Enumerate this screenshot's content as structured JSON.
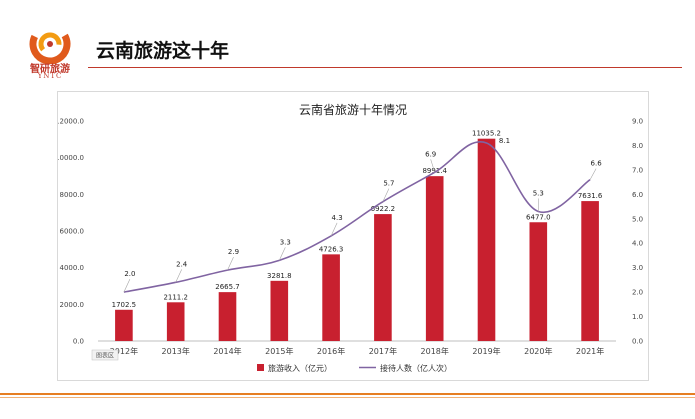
{
  "header": {
    "logo_cn": "智研旅游",
    "logo_en": "YNTC",
    "title": "云南旅游这十年"
  },
  "colors": {
    "bar": "#c8202f",
    "line": "#8064a2",
    "accent": "#c0392b",
    "footer": "#e67e22"
  },
  "chart_data": {
    "type": "bar",
    "title": "云南省旅游十年情况",
    "categories": [
      "2012年",
      "2013年",
      "2014年",
      "2015年",
      "2016年",
      "2017年",
      "2018年",
      "2019年",
      "2020年",
      "2021年"
    ],
    "series": [
      {
        "name": "旅游收入（亿元）",
        "type": "bar",
        "axis": "left",
        "values": [
          1702.5,
          2111.2,
          2665.7,
          3281.8,
          4726.3,
          6922.2,
          8991.4,
          11035.2,
          6477.0,
          7631.6
        ],
        "labels": [
          "1702.5",
          "2111.2",
          "2665.7",
          "3281.8",
          "4726.3",
          "6922.2",
          "8991.4",
          "11035.2",
          "6477.0",
          "7631.6"
        ]
      },
      {
        "name": "接待人数（亿人次）",
        "type": "line",
        "axis": "right",
        "values": [
          2.0,
          2.4,
          2.9,
          3.3,
          4.3,
          5.7,
          6.9,
          8.1,
          5.3,
          6.6
        ],
        "labels": [
          "2.0",
          "2.4",
          "2.9",
          "3.3",
          "4.3",
          "5.7",
          "6.9",
          "8.1",
          "5.3",
          "6.6"
        ]
      }
    ],
    "y_left": {
      "ylim": [
        0,
        12000
      ],
      "ticks": [
        "0.0",
        "2000.0",
        "4000.0",
        "6000.0",
        "8000.0",
        "10000.0",
        "12000.0"
      ]
    },
    "y_right": {
      "ylim": [
        0,
        9
      ],
      "ticks": [
        "0.0",
        "1.0",
        "2.0",
        "3.0",
        "4.0",
        "5.0",
        "6.0",
        "7.0",
        "8.0",
        "9.0"
      ]
    },
    "legend": "bottom",
    "grid": false,
    "tag": "图表区"
  }
}
